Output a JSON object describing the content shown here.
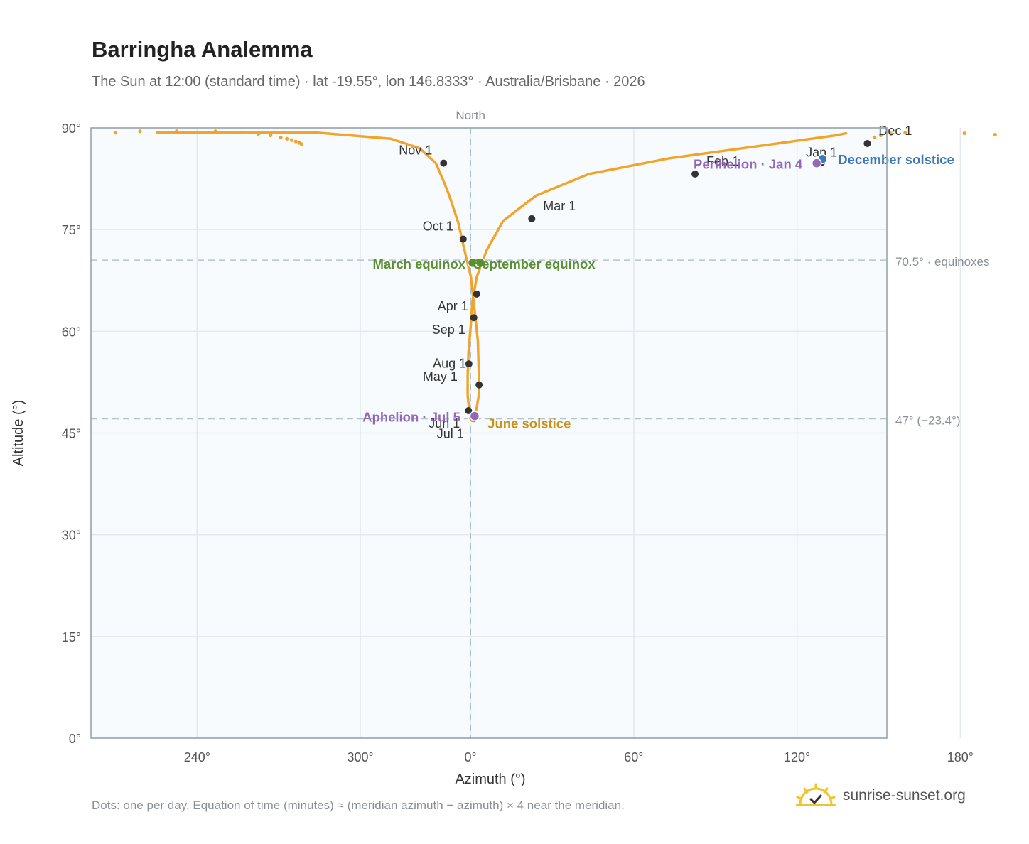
{
  "header": {
    "title": "Barringha Analemma",
    "subtitle": "The Sun at 12:00 (standard time) · lat -19.55°, lon 146.8333° · Australia/Brisbane · 2026"
  },
  "footer": {
    "note": "Dots: one per day. Equation of time (minutes) ≈ (meridian azimuth − azimuth) × 4 near the meridian.",
    "brand": "sunrise-sunset.org"
  },
  "colors": {
    "path": "#f2a42a",
    "marker": "#333333",
    "equinox": "#5a8f32",
    "solstice_dec": "#3a78b8",
    "solstice_jun": "#c8921a",
    "perihelion": "#9268b8",
    "grid": "#e3e8ee",
    "plot_bg": "#f8fbfd"
  },
  "chart_data": {
    "type": "scatter",
    "xlabel": "Azimuth (°)",
    "ylabel": "Altitude (°)",
    "x_axis": {
      "unwrapped_range": [
        207,
        402
      ],
      "ticks": [
        {
          "v": 233,
          "label": "240°"
        },
        {
          "v": 273,
          "label": "300°"
        },
        {
          "v": 300,
          "label": "0°"
        },
        {
          "v": 340,
          "label": "60°"
        },
        {
          "v": 380,
          "label": "120°"
        }
      ],
      "north_label": "North",
      "north_at": 300
    },
    "extra_tick": {
      "v": 420,
      "label": "180°"
    },
    "y_axis": {
      "range": [
        0,
        90
      ],
      "ticks": [
        0,
        15,
        30,
        45,
        60,
        75,
        90
      ],
      "tick_labels": [
        "0°",
        "15°",
        "30°",
        "45°",
        "60°",
        "75°",
        "90°"
      ]
    },
    "reference_lines": [
      {
        "altitude": 70.5,
        "label": "70.5° · equinoxes"
      },
      {
        "altitude": 47.1,
        "label": "47° (−23.4°)"
      }
    ],
    "path_keypoints": [
      [
        392,
        89.2
      ],
      [
        389.5,
        88.9
      ],
      [
        380,
        88.1
      ],
      [
        348.5,
        85.5
      ],
      [
        329,
        83.2
      ],
      [
        316,
        80.0
      ],
      [
        308,
        76.3
      ],
      [
        304,
        72.0
      ],
      [
        301.5,
        68.0
      ],
      [
        300.5,
        64.5
      ],
      [
        300,
        60.5
      ],
      [
        299.5,
        57.0
      ],
      [
        299.3,
        53.5
      ],
      [
        299.3,
        50.5
      ],
      [
        299.7,
        48.3
      ],
      [
        300.5,
        47.4
      ],
      [
        301.3,
        48.0
      ],
      [
        302,
        50.5
      ],
      [
        302.1,
        52.1
      ],
      [
        301.8,
        58.5
      ],
      [
        301.2,
        62.0
      ],
      [
        300.1,
        68.0
      ],
      [
        298.5,
        72.0
      ],
      [
        297,
        76.0
      ],
      [
        294.8,
        80.0
      ],
      [
        293.5,
        82.0
      ],
      [
        291.5,
        84.8
      ],
      [
        287.5,
        87.0
      ],
      [
        280.5,
        88.4
      ],
      [
        262.5,
        89.3
      ],
      [
        223,
        89.3
      ]
    ],
    "month_markers": [
      {
        "label": "Jan 1",
        "az": 386,
        "alt": 84.9
      },
      {
        "label": "Feb 1",
        "az": 355,
        "alt": 83.2
      },
      {
        "label": "Mar 1",
        "az": 315,
        "alt": 76.6
      },
      {
        "label": "Apr 1",
        "az": 300.8,
        "alt": 62.0
      },
      {
        "label": "May 1",
        "az": 299.6,
        "alt": 55.2
      },
      {
        "label": "Jun 1",
        "az": 299.5,
        "alt": 48.3
      },
      {
        "label": "Jul 1",
        "az": 300.8,
        "alt": 47.6
      },
      {
        "label": "Aug 1",
        "az": 302.1,
        "alt": 52.1
      },
      {
        "label": "Sep 1",
        "az": 301.5,
        "alt": 65.5
      },
      {
        "label": "Oct 1",
        "az": 298.2,
        "alt": 73.6
      },
      {
        "label": "Nov 1",
        "az": 293.4,
        "alt": 84.8
      },
      {
        "label": "Dec 1",
        "az": 397.2,
        "alt": 87.7
      }
    ],
    "events": [
      {
        "label": "March equinox",
        "az": 300.5,
        "alt": 70.1,
        "color": "#5a8f32"
      },
      {
        "label": "September equinox",
        "az": 302.4,
        "alt": 70.1,
        "color": "#5a8f32"
      },
      {
        "label": "December solstice",
        "az": 386.2,
        "alt": 85.4,
        "color": "#3a78b8"
      },
      {
        "label": "June solstice",
        "az": 300.7,
        "alt": 47.2,
        "color": "#c8921a"
      },
      {
        "label": "Perihelion · Jan 4",
        "az": 384.8,
        "alt": 84.8,
        "color": "#9268b8"
      },
      {
        "label": "Aphelion · Jul 5",
        "az": 301.0,
        "alt": 47.5,
        "color": "#9268b8"
      }
    ],
    "sparse_points": [
      [
        213,
        89.3
      ],
      [
        219,
        89.5
      ],
      [
        228,
        89.5
      ],
      [
        237.5,
        89.5
      ],
      [
        244,
        89.3
      ],
      [
        248,
        89.1
      ],
      [
        251,
        88.9
      ],
      [
        253.5,
        88.6
      ],
      [
        255,
        88.4
      ],
      [
        256.2,
        88.2
      ],
      [
        257.2,
        88.0
      ],
      [
        258,
        87.8
      ],
      [
        258.6,
        87.6
      ],
      [
        399,
        88.6
      ],
      [
        400.5,
        88.9
      ],
      [
        403,
        89.1
      ],
      [
        406.5,
        89.3
      ],
      [
        421,
        89.2
      ],
      [
        428.5,
        89.0
      ]
    ]
  }
}
